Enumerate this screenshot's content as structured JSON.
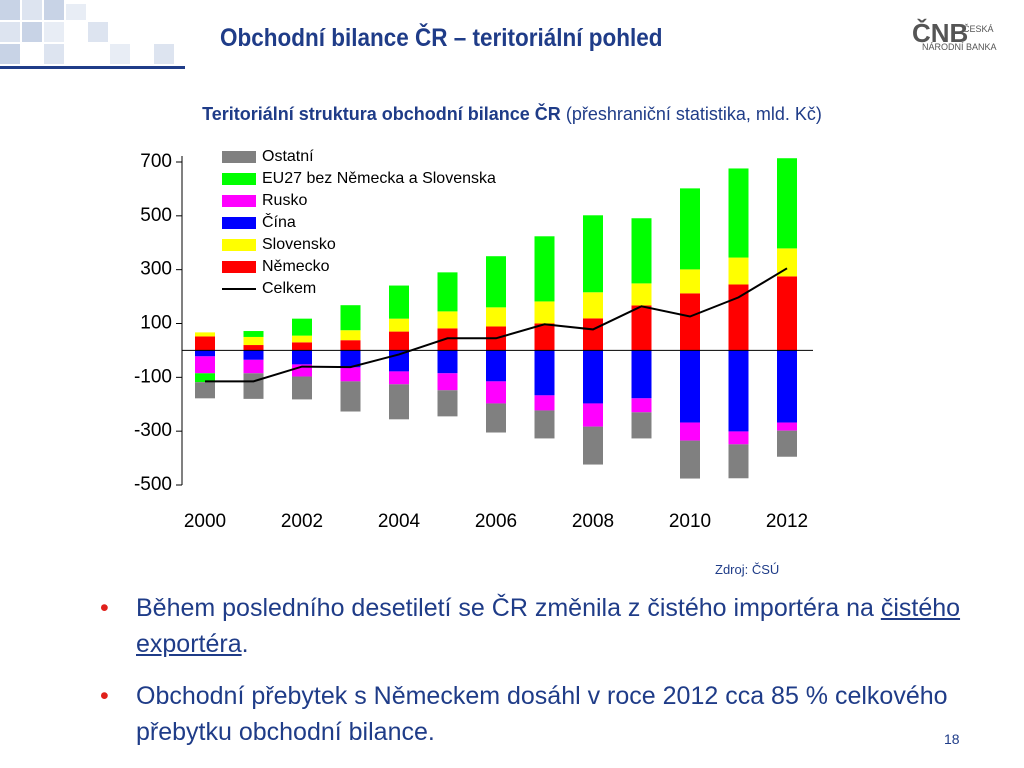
{
  "header": {
    "title": "Obchodní bilance ČR – teritoriální pohled",
    "logo": "ČNB",
    "logo_line1": "ČESKÁ",
    "logo_line2": "NÁRODNÍ BANKA"
  },
  "chart_data": {
    "type": "bar",
    "stacked": true,
    "title": "Teritoriální struktura obchodní bilance ČR",
    "subtitle": "(přeshraniční statistika, mld. Kč)",
    "categories": [
      "2000",
      null,
      "2002",
      null,
      "2004",
      null,
      "2006",
      null,
      "2008",
      null,
      "2010",
      null,
      "2012"
    ],
    "ylim": [
      -500,
      700
    ],
    "yticks": [
      -500,
      -300,
      -100,
      100,
      300,
      500,
      700
    ],
    "series": [
      {
        "name": "Ostatní",
        "color": "#808080",
        "values": [
          -60,
          -95,
          -85,
          -112,
          -130,
          -97,
          -108,
          -104,
          -141,
          -97,
          -141,
          -126,
          -97
        ]
      },
      {
        "name": "EU27 bez Německa a Slovenska",
        "color": "#00ff00",
        "values": [
          -33,
          22,
          63,
          93,
          123,
          145,
          190,
          242,
          286,
          242,
          301,
          331,
          335
        ]
      },
      {
        "name": "Rusko",
        "color": "#ff00ff",
        "values": [
          -63,
          -50,
          -45,
          -52,
          -48,
          -63,
          -82,
          -56,
          -86,
          -52,
          -67,
          -48,
          -30
        ]
      },
      {
        "name": "Čína",
        "color": "#0000ff",
        "values": [
          -22,
          -35,
          -52,
          -63,
          -78,
          -85,
          -115,
          -167,
          -197,
          -178,
          -268,
          -301,
          -268
        ]
      },
      {
        "name": "Slovensko",
        "color": "#ffff00",
        "values": [
          15,
          30,
          25,
          37,
          48,
          63,
          71,
          82,
          97,
          82,
          89,
          100,
          104
        ]
      },
      {
        "name": "Německo",
        "color": "#ff0000",
        "values": [
          52,
          20,
          30,
          38,
          70,
          82,
          89,
          100,
          119,
          167,
          212,
          245,
          275
        ]
      },
      {
        "name": "Celkem",
        "type": "line",
        "color": "#000000",
        "values": [
          -115,
          -115,
          -60,
          -62,
          -15,
          45,
          45,
          97,
          78,
          164,
          126,
          197,
          305
        ]
      }
    ],
    "source": "Zdroj: ČSÚ"
  },
  "bullets": [
    [
      "Během posledního desetiletí se ČR změnila z čistého importéra na ",
      "čistého exportéra",
      "."
    ],
    [
      "Obchodní přebytek s Německem dosáhl v roce 2012 cca 85 % celkového přebytku obchodní bilance."
    ]
  ],
  "page_number": "18"
}
